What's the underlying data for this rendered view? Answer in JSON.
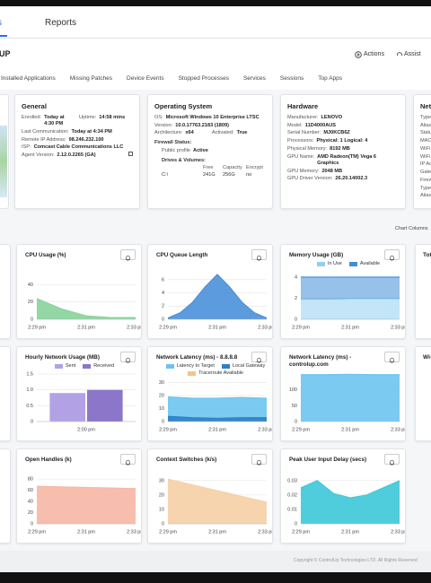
{
  "window": {
    "partial_tab": "s",
    "tab": "Reports",
    "partial_title": "UP",
    "actions": "Actions",
    "assist": "Assist"
  },
  "tabs": [
    "Installed Applications",
    "Missing Patches",
    "Device Events",
    "Stopped Processes",
    "Services",
    "Sessions",
    "Top Apps"
  ],
  "cards": [
    {
      "title": "General",
      "rows": [
        [
          {
            "label": "Enrolled:",
            "value": "Today at 4:30 PM"
          },
          {
            "label": "Uptime:",
            "value": "14:58 mins"
          }
        ],
        [
          {
            "label": "Last Communication:",
            "value": "Today at 4:34 PM"
          }
        ],
        [
          {
            "label": "Remote IP Address:",
            "value": "98.246.232.100"
          }
        ],
        [
          {
            "label": "ISP:",
            "value": "Comcast Cable Communications LLC"
          }
        ],
        [
          {
            "label": "Agent Version:",
            "value": "2.12.0.2265 (GA)"
          }
        ]
      ]
    },
    {
      "title": "Operating System",
      "rows": [
        [
          {
            "label": "OS:",
            "value": "Microsoft Windows 10 Enterprise LTSC"
          }
        ],
        [
          {
            "label": "Version:",
            "value": "10.0.17763.2183 (1809)"
          }
        ],
        [
          {
            "label": "Architecture:",
            "value": "x64"
          },
          {
            "label": "Activated:",
            "value": "True"
          }
        ],
        [
          {
            "heading": "Firewall Status:"
          }
        ],
        [
          {
            "label": "Public profile",
            "value": "Active"
          }
        ],
        [
          {
            "heading": "Drives & Volumes:"
          }
        ]
      ],
      "drives": {
        "columns": [
          "Free",
          "Capacity",
          "Encrypt"
        ],
        "rows": [
          [
            "C:\\",
            "241G",
            "256G",
            "no"
          ]
        ]
      }
    },
    {
      "title": "Hardware",
      "rows": [
        [
          {
            "label": "Manufacturer:",
            "value": "LENOVO"
          }
        ],
        [
          {
            "label": "Model:",
            "value": "11D4000AUS"
          }
        ],
        [
          {
            "label": "Serial Number:",
            "value": "MJ0KCB6Z"
          }
        ],
        [
          {
            "label": "Processors:",
            "value": "Physical: 1 Logical: 4"
          }
        ],
        [
          {
            "label": "Physical Memory:",
            "value": "8192 MB"
          }
        ],
        [
          {
            "label": "GPU Name:",
            "value": "AMD Radeon(TM) Vega 6 Graphics"
          }
        ],
        [
          {
            "label": "GPU Memory:",
            "value": "2048 MB"
          }
        ],
        [
          {
            "label": "GPU Driver Version:",
            "value": "26.20.14002.3"
          }
        ]
      ]
    },
    {
      "title": "Netw",
      "rows": [
        [
          {
            "label": "Type"
          }
        ],
        [
          {
            "label": "Alias"
          }
        ],
        [
          {
            "label": "Statu"
          }
        ],
        [
          {
            "label": "MAC"
          }
        ],
        [
          {
            "label": "WiFi"
          }
        ],
        [
          {
            "label": "WiFi"
          }
        ],
        [
          {
            "label": "IP Ac"
          }
        ],
        [
          {
            "label": "Gate"
          }
        ],
        [
          {
            "label": "Firew"
          }
        ],
        [
          {
            "label": "Type"
          }
        ],
        [
          {
            "label": "Alias"
          }
        ]
      ]
    }
  ],
  "chart_columns": "Chart Columns",
  "partial_chart_titles": [
    "Tota",
    "Wi-Fi"
  ],
  "footer": "Copyright © ControlUp Technologies LTD. All Rights Reserved",
  "chart_data": [
    {
      "type": "area",
      "title": "CPU Usage (%)",
      "x": [
        "2:29 pm",
        null,
        "2:31 pm",
        null,
        "2:33 pm"
      ],
      "series": [
        {
          "color": "#86d39a",
          "values": [
            24,
            12,
            4,
            2,
            2
          ]
        }
      ],
      "ylim": [
        0,
        55
      ],
      "yticks": [
        0,
        20,
        40
      ]
    },
    {
      "type": "area",
      "title": "CPU Queue Length",
      "x": [
        "2:29 pm",
        null,
        null,
        null,
        "2:31 pm",
        null,
        null,
        null,
        "2:33 pm"
      ],
      "series": [
        {
          "color": "#4a90d9",
          "values": [
            0.2,
            1,
            2.6,
            4.9,
            6.8,
            4.9,
            2.6,
            1,
            0.2
          ]
        }
      ],
      "ylim": [
        0,
        7.2
      ],
      "yticks": [
        0,
        2,
        4,
        6
      ]
    },
    {
      "type": "area",
      "title": "Memory Usage (GB)",
      "stacked": true,
      "x": [
        "2:29 pm",
        null,
        "2:31 pm",
        null,
        "2:33 pm"
      ],
      "series": [
        {
          "name": "In Use",
          "color": "#8fd0f2",
          "values": [
            1.9,
            1.9,
            1.95,
            1.95,
            1.95
          ]
        },
        {
          "name": "Available",
          "color": "#3f8fd8",
          "values": [
            2.1,
            2.1,
            2.05,
            2.05,
            2.05
          ]
        }
      ],
      "ylim": [
        0,
        4.5
      ],
      "yticks": [
        0,
        2,
        4
      ]
    },
    {
      "type": "bar",
      "title": "Hourly Network Usage (MB)",
      "x": [
        "2:00 pm"
      ],
      "series": [
        {
          "name": "Sent",
          "color": "#b3a1e6",
          "values": [
            0.9
          ]
        },
        {
          "name": "Received",
          "color": "#8c76c9",
          "values": [
            1.0
          ]
        }
      ],
      "ylim": [
        0,
        1.5
      ],
      "yticks": [
        0,
        0.5,
        {
          "value": 1,
          "label": "1.0"
        },
        1.5
      ]
    },
    {
      "type": "area",
      "title": "Network Latency (ms) - 8.8.8.8",
      "x": [
        "2:29 pm",
        null,
        "2:31 pm",
        null,
        "2:33 pm"
      ],
      "series": [
        {
          "name": "Latency to Target",
          "color": "#6cc4ef",
          "values": [
            19,
            18,
            18,
            18.5,
            18
          ]
        },
        {
          "name": "Local Gateway",
          "color": "#2f7fc8",
          "values": [
            4,
            3,
            2.5,
            3,
            3
          ]
        }
      ],
      "legend_items": [
        {
          "name": "Traceroute Available",
          "color": "#f3c48c"
        }
      ],
      "ylim": [
        0,
        31
      ],
      "yticks": [
        0,
        10,
        20,
        30
      ]
    },
    {
      "type": "area",
      "title": "Network Latency (ms) - controlup.com",
      "x": [
        "2:29 pm",
        null,
        "2:31 pm",
        null,
        "2:33 pm"
      ],
      "series": [
        {
          "color": "#6cc4ef",
          "values": [
            148,
            148,
            149,
            148,
            148
          ]
        }
      ],
      "ylim": [
        0,
        150
      ],
      "yticks": [
        0,
        50,
        100
      ]
    },
    {
      "type": "area",
      "title": "Open Handles (k)",
      "x": [
        "2:29 pm",
        null,
        "2:31 pm",
        null,
        "2:33 pm"
      ],
      "series": [
        {
          "color": "#f6b7a5",
          "values": [
            67,
            66,
            65,
            64,
            63
          ]
        }
      ],
      "ylim": [
        0,
        85
      ],
      "yticks": [
        0,
        20,
        40,
        60,
        80
      ]
    },
    {
      "type": "area",
      "title": "Context Switches (k/s)",
      "x": [
        "2:29 pm",
        null,
        "2:31 pm",
        null,
        "2:33 pm"
      ],
      "series": [
        {
          "color": "#f5cfa5",
          "values": [
            31,
            27,
            23,
            19,
            15
          ]
        }
      ],
      "ylim": [
        0,
        33
      ],
      "yticks": [
        0,
        10,
        20,
        30
      ]
    },
    {
      "type": "area",
      "title": "Peak User Input Delay (secs)",
      "x": [
        "2:29 pm",
        null,
        null,
        "2:31 pm",
        null,
        null,
        "2:33 pm"
      ],
      "series": [
        {
          "color": "#3cc8d8",
          "values": [
            0.025,
            0.03,
            0.021,
            0.018,
            0.02,
            0.025,
            0.03
          ]
        }
      ],
      "ylim": [
        0,
        0.033
      ],
      "yticks": [
        0,
        0.01,
        0.02,
        0.03
      ]
    }
  ]
}
